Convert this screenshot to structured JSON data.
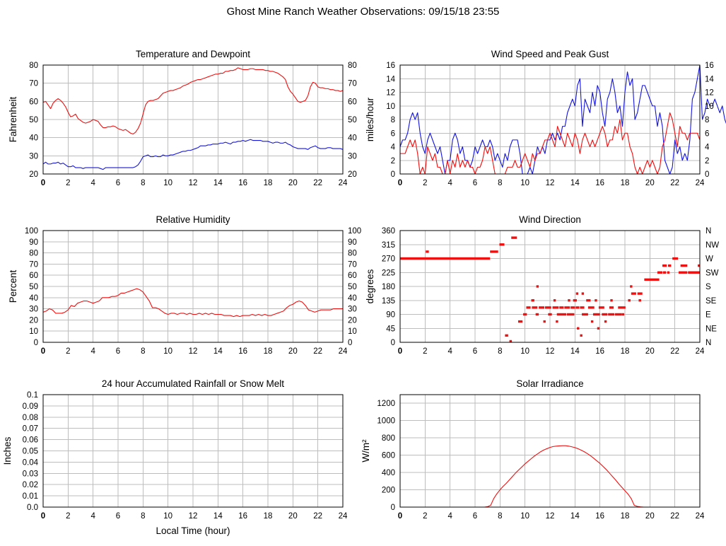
{
  "page": {
    "title": "Ghost Mine Ranch Weather Observations: 09/15/18 23:55"
  },
  "colors": {
    "red": "#f01010",
    "blue": "#1515e0",
    "grid": "#bdbdbd",
    "axis": "#000000",
    "text": "#000000"
  },
  "chart_data": [
    {
      "id": "temperature-dewpoint",
      "type": "line",
      "title": "Temperature and Dewpoint",
      "ylabel": "Fahrenheit",
      "xlim": [
        0,
        24
      ],
      "xtick_step": 2,
      "ylim": [
        20,
        80
      ],
      "yticks": [
        20,
        30,
        40,
        50,
        60,
        70,
        80
      ],
      "mirror_right": true,
      "series": [
        {
          "name": "temperature",
          "color": "red",
          "xstep": 0.2,
          "values": [
            59.5,
            60,
            58,
            56,
            59,
            60.5,
            61.5,
            60.5,
            59,
            57,
            54,
            51.5,
            52,
            53,
            50.5,
            49.5,
            48.5,
            48,
            48.5,
            49,
            50,
            49.5,
            49,
            47,
            45.5,
            45.5,
            46,
            46,
            46.5,
            46,
            45,
            44.5,
            44,
            44.5,
            43.5,
            42.5,
            42,
            43,
            45,
            48,
            53,
            58,
            60,
            60.5,
            60.5,
            61,
            61.5,
            63,
            64.5,
            65,
            65.5,
            66,
            66,
            66.5,
            67,
            67.5,
            68.5,
            69,
            69.5,
            70.5,
            71,
            71.5,
            72,
            72,
            72.5,
            73,
            73.5,
            74,
            74.5,
            75,
            75,
            75.5,
            75.5,
            76.5,
            76.5,
            77,
            77,
            77.5,
            78.5,
            78,
            77.5,
            77.5,
            77.5,
            78,
            78,
            77.5,
            77.5,
            77.5,
            77.5,
            77,
            77,
            76.5,
            76.5,
            76,
            75.5,
            74.5,
            73.5,
            72,
            68,
            65.5,
            64,
            62,
            60,
            59.5,
            60,
            60.5,
            63,
            68,
            70.5,
            70,
            68,
            67.5,
            67.5,
            67,
            67,
            66.5,
            66.5,
            66,
            66,
            65.5,
            66
          ]
        },
        {
          "name": "dewpoint",
          "color": "blue",
          "xstep": 0.2,
          "values": [
            25.5,
            26.5,
            25.5,
            25.5,
            26,
            26,
            26.5,
            25.5,
            26,
            25,
            24,
            24,
            24.5,
            23.5,
            23.5,
            23.5,
            23,
            23.5,
            23.5,
            23.5,
            23.5,
            23.5,
            23.5,
            23,
            22.5,
            23.5,
            23.5,
            23.5,
            23.5,
            23.5,
            23.5,
            23.5,
            23.5,
            23.5,
            23.5,
            23.5,
            23.5,
            24,
            25,
            27,
            29.5,
            30,
            30.5,
            29.5,
            29.5,
            30,
            29.5,
            29.5,
            30.5,
            30,
            30,
            30.5,
            30.5,
            31,
            31.5,
            32,
            32.5,
            32.5,
            33,
            33,
            33.5,
            34,
            34.5,
            35.5,
            35.5,
            35.5,
            36,
            36,
            36.5,
            36.5,
            36.5,
            37,
            37,
            37.5,
            37,
            36.5,
            37.5,
            37.5,
            38,
            38,
            38.5,
            38,
            38.5,
            39,
            38.5,
            38.5,
            38.5,
            38.5,
            38,
            38,
            38,
            37.5,
            37,
            37.5,
            37.5,
            37,
            37,
            37.5,
            36.5,
            36,
            35,
            34.5,
            34,
            34,
            34,
            34,
            33.5,
            34.5,
            35,
            35.5,
            34.5,
            34,
            34,
            34,
            34.5,
            34.5,
            34,
            34,
            34,
            34,
            33.5
          ]
        }
      ]
    },
    {
      "id": "wind-speed-gust",
      "type": "line",
      "title": "Wind Speed and Peak Gust",
      "ylabel": "miles/hour",
      "xlim": [
        0,
        24
      ],
      "xtick_step": 2,
      "ylim": [
        0,
        16
      ],
      "yticks": [
        0,
        2,
        4,
        6,
        8,
        10,
        12,
        14,
        16
      ],
      "mirror_right": true,
      "series": [
        {
          "name": "peak-gust",
          "color": "blue",
          "xstep": 0.2,
          "values": [
            4,
            5,
            5,
            6,
            8,
            9,
            8,
            9,
            6,
            4,
            3,
            5,
            6,
            5,
            4,
            3,
            4,
            2,
            0,
            2,
            2,
            5,
            6,
            5,
            3,
            4,
            2,
            2,
            1,
            2,
            4,
            3,
            4,
            5,
            4,
            4,
            5,
            4,
            2,
            3,
            2,
            1,
            3,
            2,
            4,
            5,
            5,
            5,
            3,
            0,
            0,
            0,
            1,
            0,
            2,
            4,
            3,
            4,
            3,
            5,
            5,
            6,
            5,
            6,
            5,
            7,
            7,
            9,
            10,
            11,
            10,
            13,
            14,
            7,
            11,
            10,
            9,
            12,
            10,
            13,
            12,
            9,
            7,
            11,
            12,
            14,
            12,
            9,
            10,
            7,
            12,
            15,
            13,
            14,
            8,
            9,
            11,
            13,
            13,
            12,
            11,
            10,
            10,
            7,
            9,
            7,
            2,
            1,
            0,
            1,
            5,
            3,
            4,
            2,
            3,
            2,
            5,
            11,
            12,
            14,
            16,
            8,
            9,
            11,
            10,
            10,
            11,
            10,
            9,
            10,
            8,
            7
          ]
        },
        {
          "name": "wind-speed",
          "color": "red",
          "xstep": 0.2,
          "values": [
            3,
            3,
            3,
            4,
            5,
            4,
            5,
            3,
            0,
            1,
            0,
            4,
            3,
            2,
            3,
            1,
            1,
            0,
            0,
            2,
            0,
            2,
            1,
            3,
            1,
            2,
            1,
            2,
            1,
            1,
            0,
            1,
            1,
            2,
            4,
            3,
            4,
            2,
            0,
            0,
            0,
            0,
            0,
            1,
            1,
            1,
            2,
            1,
            1,
            2,
            3,
            2,
            1,
            3,
            2,
            3,
            3,
            4,
            5,
            5,
            6,
            5,
            4,
            7,
            6,
            5,
            4,
            6,
            5,
            4,
            6,
            5,
            3,
            5,
            6,
            5,
            4,
            5,
            4,
            5,
            6,
            7,
            6,
            4,
            5,
            5,
            7,
            6,
            8,
            5,
            6,
            6,
            4,
            3,
            1,
            0,
            1,
            0,
            1,
            2,
            1,
            2,
            1,
            0,
            1,
            4,
            5,
            7,
            9,
            8,
            6,
            4,
            7,
            6,
            6,
            5,
            6,
            6,
            6,
            6,
            5
          ]
        }
      ]
    },
    {
      "id": "relative-humidity",
      "type": "line",
      "title": "Relative Humidity",
      "ylabel": "Percent",
      "xlim": [
        0,
        24
      ],
      "xtick_step": 2,
      "ylim": [
        0,
        100
      ],
      "yticks": [
        0,
        10,
        20,
        30,
        40,
        50,
        60,
        70,
        80,
        90,
        100
      ],
      "mirror_right": true,
      "series": [
        {
          "name": "humidity",
          "color": "red",
          "xstep": 0.25,
          "values": [
            27,
            28,
            30,
            29,
            26,
            26,
            26,
            27,
            29,
            33,
            32,
            35,
            36,
            37,
            37,
            36,
            35,
            36,
            37,
            40,
            40,
            40,
            41,
            41,
            42,
            44,
            44,
            45,
            46,
            47,
            48,
            47,
            45,
            41,
            37,
            31,
            31,
            30,
            28,
            26,
            25,
            26,
            26,
            25,
            26,
            26,
            25,
            26,
            25,
            25,
            26,
            25,
            26,
            25,
            26,
            25,
            25,
            25,
            24,
            24,
            24,
            23,
            24,
            23,
            24,
            24,
            24,
            25,
            24,
            25,
            24,
            25,
            24,
            24,
            25,
            26,
            27,
            28,
            31,
            33,
            34,
            36,
            37,
            36,
            33,
            29,
            28,
            27,
            28,
            29,
            29,
            29,
            29,
            30,
            30,
            30,
            30
          ]
        }
      ]
    },
    {
      "id": "wind-direction",
      "type": "scatter",
      "title": "Wind Direction",
      "ylabel": "degrees",
      "xlim": [
        0,
        24
      ],
      "xtick_step": 2,
      "ylim": [
        0,
        360
      ],
      "yticks": [
        0,
        45,
        90,
        135,
        180,
        225,
        270,
        315,
        360
      ],
      "right_labels": [
        "N",
        "NE",
        "E",
        "SE",
        "S",
        "SW",
        "W",
        "NW",
        "N"
      ],
      "marker_color": "red",
      "segments": [
        [
          0,
          7.2,
          270
        ],
        [
          2.05,
          2.3,
          292
        ],
        [
          7.2,
          7.85,
          292
        ],
        [
          7.95,
          8.35,
          315
        ],
        [
          8.4,
          8.65,
          22
        ],
        [
          8.75,
          8.95,
          0
        ],
        [
          8.9,
          9.35,
          337
        ],
        [
          9.45,
          9.8,
          67
        ],
        [
          9.85,
          10.15,
          90
        ],
        [
          10.1,
          10.45,
          112
        ],
        [
          10.5,
          10.75,
          135
        ],
        [
          10.55,
          11.0,
          112
        ],
        [
          10.85,
          11.1,
          90
        ],
        [
          10.95,
          11.05,
          180
        ],
        [
          11.1,
          11.55,
          112
        ],
        [
          11.5,
          11.62,
          67
        ],
        [
          11.6,
          12.1,
          112
        ],
        [
          11.85,
          12.15,
          90
        ],
        [
          12.2,
          12.7,
          112
        ],
        [
          12.3,
          12.45,
          135
        ],
        [
          12.5,
          12.62,
          67
        ],
        [
          12.55,
          13.3,
          90
        ],
        [
          12.75,
          13.1,
          112
        ],
        [
          13.15,
          13.6,
          112
        ],
        [
          13.45,
          13.6,
          135
        ],
        [
          13.35,
          13.95,
          90
        ],
        [
          13.65,
          14.0,
          112
        ],
        [
          13.85,
          14.15,
          135
        ],
        [
          14.05,
          14.35,
          112
        ],
        [
          14.1,
          14.25,
          157
        ],
        [
          14.2,
          14.3,
          45
        ],
        [
          14.45,
          14.55,
          22
        ],
        [
          14.55,
          14.7,
          157
        ],
        [
          14.4,
          14.75,
          112
        ],
        [
          14.55,
          15.05,
          90
        ],
        [
          14.9,
          15.25,
          135
        ],
        [
          15.05,
          15.55,
          112
        ],
        [
          15.3,
          15.45,
          67
        ],
        [
          15.45,
          16.0,
          90
        ],
        [
          15.6,
          15.75,
          135
        ],
        [
          15.8,
          15.95,
          45
        ],
        [
          15.9,
          16.35,
          112
        ],
        [
          16.15,
          16.6,
          90
        ],
        [
          16.4,
          16.5,
          67
        ],
        [
          16.65,
          17.15,
          90
        ],
        [
          16.75,
          17.1,
          112
        ],
        [
          16.85,
          17.0,
          135
        ],
        [
          17.2,
          17.75,
          90
        ],
        [
          17.45,
          18.05,
          112
        ],
        [
          17.8,
          17.9,
          90
        ],
        [
          18.25,
          18.45,
          135
        ],
        [
          18.45,
          18.55,
          180
        ],
        [
          18.5,
          18.9,
          157
        ],
        [
          19.0,
          19.4,
          157
        ],
        [
          19.1,
          19.3,
          135
        ],
        [
          19.55,
          20.75,
          202
        ],
        [
          20.6,
          21.0,
          225
        ],
        [
          21.05,
          21.3,
          225
        ],
        [
          21.4,
          21.55,
          225
        ],
        [
          21.0,
          21.35,
          247
        ],
        [
          21.45,
          21.7,
          247
        ],
        [
          21.8,
          22.25,
          270
        ],
        [
          22.3,
          23.0,
          225
        ],
        [
          22.45,
          23.0,
          247
        ],
        [
          23.05,
          24.0,
          225
        ],
        [
          23.85,
          24.0,
          247
        ]
      ]
    },
    {
      "id": "accumulated-rainfall",
      "type": "line",
      "title": "24 hour Accumulated Rainfall or Snow Melt",
      "ylabel": "Inches",
      "xlabel": "Local Time (hour)",
      "xlim": [
        0,
        24
      ],
      "xtick_step": 2,
      "ylim": [
        0,
        0.1
      ],
      "yticks": [
        0,
        0.01,
        0.02,
        0.03,
        0.04,
        0.05,
        0.06,
        0.07,
        0.08,
        0.09,
        0.1
      ],
      "ytick_labels": [
        "0.0",
        "0.01",
        "0.02",
        "0.03",
        "0.04",
        "0.05",
        "0.06",
        "0.07",
        "0.08",
        "0.09",
        "0.1"
      ],
      "series": [
        {
          "name": "rainfall",
          "color": "red",
          "xstep": 24,
          "values": [
            0,
            0
          ]
        }
      ]
    },
    {
      "id": "solar-irradiance",
      "type": "line",
      "title": "Solar Irradiance",
      "ylabel": "W/m²",
      "xlim": [
        0,
        24
      ],
      "xtick_step": 2,
      "ylim": [
        0,
        1300
      ],
      "yticks": [
        0,
        200,
        400,
        600,
        800,
        1000,
        1200
      ],
      "series": [
        {
          "name": "irradiance",
          "color": "red",
          "xstep": 0.25,
          "values": [
            0,
            0,
            0,
            0,
            0,
            0,
            0,
            0,
            0,
            0,
            0,
            0,
            0,
            0,
            0,
            0,
            0,
            0,
            0,
            0,
            0,
            0,
            0,
            0,
            0,
            0,
            0,
            0,
            5,
            20,
            100,
            155,
            200,
            240,
            275,
            315,
            355,
            395,
            430,
            465,
            500,
            530,
            560,
            590,
            615,
            640,
            660,
            675,
            690,
            700,
            705,
            708,
            710,
            710,
            705,
            697,
            688,
            675,
            658,
            640,
            618,
            593,
            565,
            535,
            505,
            470,
            435,
            395,
            355,
            315,
            270,
            230,
            190,
            150,
            100,
            20,
            8,
            3,
            0,
            0,
            0,
            0,
            0,
            0,
            0,
            0,
            0,
            0,
            0,
            0,
            0,
            0,
            0,
            0,
            0,
            0,
            0
          ]
        }
      ]
    }
  ]
}
